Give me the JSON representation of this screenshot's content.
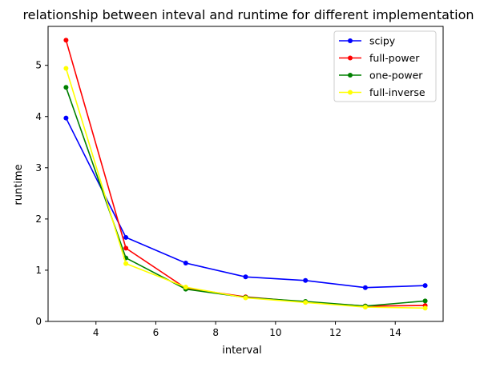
{
  "chart_data": {
    "type": "line",
    "title": "relationship between inteval and runtime for different implementation",
    "xlabel": "interval",
    "ylabel": "runtime",
    "xlim": [
      2.4,
      15.6
    ],
    "ylim": [
      0,
      5.76
    ],
    "xticks": [
      4,
      6,
      8,
      10,
      12,
      14
    ],
    "yticks": [
      0,
      1,
      2,
      3,
      4,
      5
    ],
    "grid": false,
    "legend_position": "top-right",
    "x": [
      3,
      5,
      7,
      9,
      11,
      13,
      15
    ],
    "series": [
      {
        "name": "scipy",
        "color": "#0000ff",
        "values": [
          3.97,
          1.64,
          1.14,
          0.87,
          0.8,
          0.66,
          0.7
        ]
      },
      {
        "name": "full-power",
        "color": "#ff0000",
        "values": [
          5.49,
          1.43,
          0.65,
          0.48,
          0.38,
          0.3,
          0.31
        ]
      },
      {
        "name": "one-power",
        "color": "#008000",
        "values": [
          4.57,
          1.24,
          0.63,
          0.47,
          0.39,
          0.3,
          0.4
        ]
      },
      {
        "name": "full-inverse",
        "color": "#ffff00",
        "values": [
          4.94,
          1.13,
          0.67,
          0.46,
          0.37,
          0.28,
          0.26
        ]
      }
    ]
  }
}
